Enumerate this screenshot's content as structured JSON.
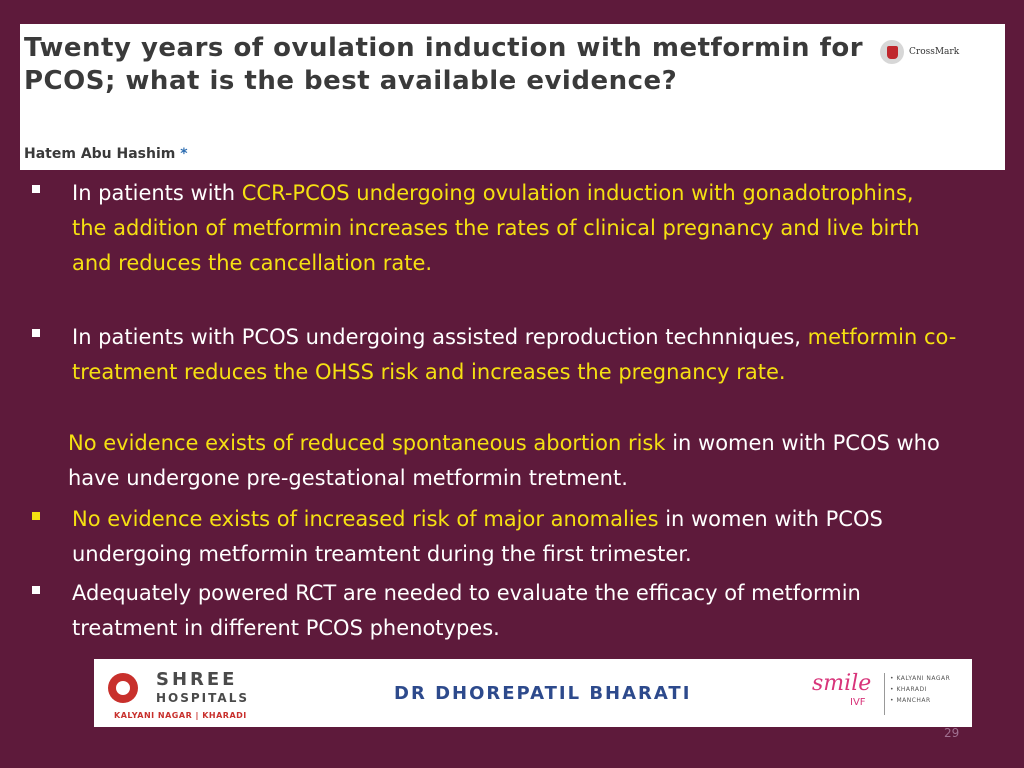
{
  "title_box": {
    "title": "Twenty years of ovulation induction with metformin for PCOS; what is the best available evidence?",
    "author": "Hatem Abu Hashim",
    "author_mark": "*",
    "crossmark_label": "CrossMark"
  },
  "bullets": [
    {
      "pre": "In patients with ",
      "hl": "CCR-PCOS undergoing ovulation induction with gonadotrophins, the addition of metformin increases the rates of clinical pregnancy and live birth and reduces the cancellation rate.",
      "post": ""
    },
    {
      "pre": "In patients with PCOS undergoing assisted reproduction technniques, ",
      "hl": "metformin co-treatment reduces the OHSS risk and increases the pregnancy rate.",
      "post": ""
    },
    {
      "pre": "",
      "hl": "No evidence exists of reduced spontaneous abortion risk",
      "post": " in women with PCOS who have undergone pre-gestational metformin tretment."
    },
    {
      "pre": "",
      "hl": "No evidence exists of increased risk of major anomalies",
      "post": " in women with PCOS undergoing metformin treamtent during the first trimester."
    },
    {
      "pre": "Adequately powered RCT are needed to evaluate the efficacy of metformin treatment in different PCOS phenotypes.",
      "hl": "",
      "post": ""
    }
  ],
  "footer": {
    "hospital_name": "SHREE",
    "hospital_sub": "HOSPITALS",
    "hospital_locations": "KALYANI NAGAR | KHARADI",
    "doctor": "DR DHOREPATIL BHARATI",
    "smile_brand": "smile",
    "smile_ivf": "IVF",
    "smile_loc1": "• KALYANI NAGAR",
    "smile_loc2": "• KHARADI",
    "smile_loc3": "• MANCHAR"
  },
  "page_number": "29"
}
